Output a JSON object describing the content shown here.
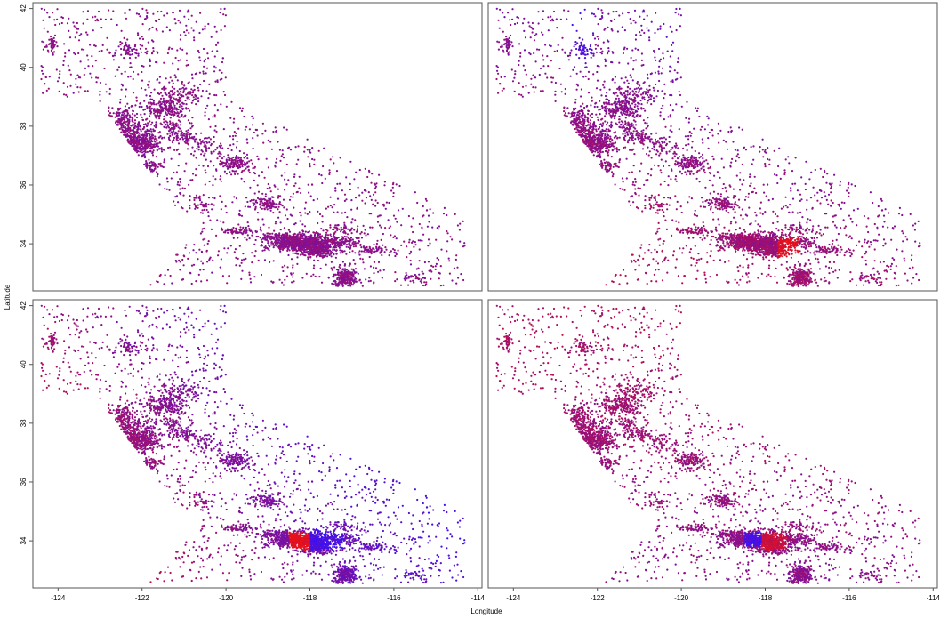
{
  "figure": {
    "xlabel": "Longitude",
    "ylabel": "Latitude"
  },
  "chart_data": [
    {
      "type": "scatter",
      "panel": "top-left",
      "xlim": [
        -124.6,
        -113.9
      ],
      "ylim": [
        32.4,
        42.2
      ],
      "xticks": [],
      "yticks": [
        "34",
        "36",
        "38",
        "40",
        "42"
      ],
      "color_scheme": "blue-to-red",
      "color_trend": "uniform",
      "colors": {
        "low": "#3311ff",
        "mid": "#8a108a",
        "high": "#ee1111"
      }
    },
    {
      "type": "scatter",
      "panel": "top-right",
      "xlim": [
        -124.6,
        -113.9
      ],
      "ylim": [
        32.4,
        42.2
      ],
      "xticks": [],
      "yticks": [],
      "color_scheme": "blue-to-red",
      "color_trend": "inland-north",
      "colors": {
        "low": "#3311ff",
        "mid": "#8a108a",
        "high": "#ee1111"
      }
    },
    {
      "type": "scatter",
      "panel": "bottom-left",
      "xlim": [
        -124.6,
        -113.9
      ],
      "ylim": [
        32.4,
        42.2
      ],
      "xticks": [
        "-124",
        "-122",
        "-120",
        "-118",
        "-116",
        "-114"
      ],
      "yticks": [
        "34",
        "36",
        "38",
        "40",
        "42"
      ],
      "color_scheme": "blue-to-red",
      "color_trend": "coastal",
      "colors": {
        "low": "#3311ff",
        "mid": "#8a108a",
        "high": "#ee1111"
      }
    },
    {
      "type": "scatter",
      "panel": "bottom-right",
      "xlim": [
        -124.6,
        -113.9
      ],
      "ylim": [
        32.4,
        42.2
      ],
      "xticks": [
        "-124",
        "-122",
        "-120",
        "-118",
        "-116",
        "-114"
      ],
      "yticks": [],
      "color_scheme": "blue-to-red",
      "color_trend": "la-core",
      "colors": {
        "low": "#3311ff",
        "mid": "#8a108a",
        "high": "#ee1111"
      }
    }
  ]
}
